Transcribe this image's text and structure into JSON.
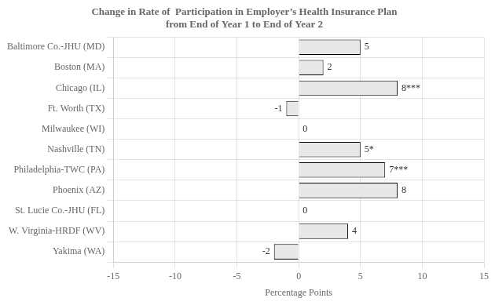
{
  "chart_data": {
    "type": "bar",
    "orientation": "horizontal",
    "title": "Change in Rate of  Participation in Employer’s Health Insurance Plan\nfrom End of Year 1 to End of Year 2",
    "xlabel": "Percentage Points",
    "categories": [
      "Baltimore Co.-JHU (MD)",
      "Boston (MA)",
      "Chicago (IL)",
      "Ft. Worth (TX)",
      "Milwaukee (WI)",
      "Nashville (TN)",
      "Philadelphia-TWC (PA)",
      "Phoenix (AZ)",
      "St. Lucie Co.-JHU (FL)",
      "W. Virginia-HRDF (WV)",
      "Yakima (WA)"
    ],
    "values": [
      5,
      2,
      8,
      -1,
      0,
      5,
      7,
      8,
      0,
      4,
      -2
    ],
    "value_labels": [
      "5",
      "2",
      "8***",
      "-1",
      "0",
      "5*",
      "7***",
      "8",
      "0",
      "4",
      "-2"
    ],
    "data_labels": true,
    "color": "#e8e8e8",
    "xlim": [
      -15,
      15
    ],
    "xticks": [
      -15,
      -10,
      -5,
      0,
      5,
      10,
      15
    ],
    "grid": true
  }
}
